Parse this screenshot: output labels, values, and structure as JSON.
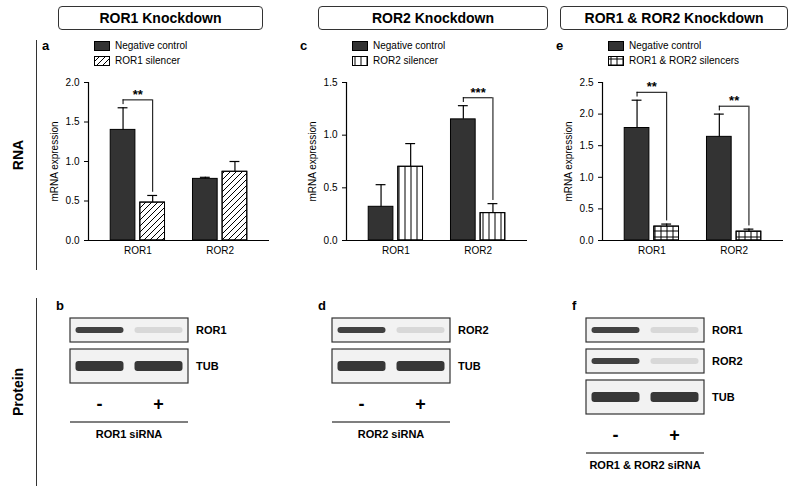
{
  "headers": [
    "ROR1 Knockdown",
    "ROR2 Knockdown",
    "ROR1 & ROR2 Knockdown"
  ],
  "row_labels": [
    "RNA",
    "Protein"
  ],
  "chart_data": [
    {
      "type": "bar",
      "panel": "a",
      "categories": [
        "ROR1",
        "ROR2"
      ],
      "series": [
        {
          "name": "Negative control",
          "color": "#333333",
          "values": [
            1.4,
            0.78
          ],
          "errors": [
            0.28,
            0.02
          ]
        },
        {
          "name": "ROR1 silencer",
          "color": "#ffffff",
          "values": [
            0.48,
            0.87
          ],
          "errors": [
            0.09,
            0.13
          ]
        }
      ],
      "y_label": "mRNA expression",
      "ylim": [
        0,
        2
      ],
      "yticks": [
        {
          "value": 0,
          "label": "0.0"
        },
        {
          "value": 0.5,
          "label": "0.5"
        },
        {
          "value": 1,
          "label": "1.0"
        },
        {
          "value": 1.5,
          "label": "1.5"
        },
        {
          "value": 2,
          "label": "2.0"
        }
      ],
      "legend": "top-left",
      "annotations": [
        {
          "category": "ROR1",
          "text": "**"
        }
      ]
    },
    {
      "type": "bar",
      "panel": "c",
      "categories": [
        "ROR1",
        "ROR2"
      ],
      "series": [
        {
          "name": "Negative control",
          "color": "#333333",
          "values": [
            0.32,
            1.15
          ],
          "errors": [
            0.21,
            0.13
          ]
        },
        {
          "name": "ROR2 silencer",
          "color": "#ffffff",
          "values": [
            0.7,
            0.26
          ],
          "errors": [
            0.22,
            0.09
          ]
        }
      ],
      "y_label": "mRNA expression",
      "ylim": [
        0,
        1.5
      ],
      "yticks": [
        {
          "value": 0,
          "label": "0.0"
        },
        {
          "value": 0.5,
          "label": "0.5"
        },
        {
          "value": 1,
          "label": "1.0"
        },
        {
          "value": 1.5,
          "label": "1.5"
        }
      ],
      "legend": "top-left",
      "annotations": [
        {
          "category": "ROR2",
          "text": "***"
        }
      ]
    },
    {
      "type": "bar",
      "panel": "e",
      "categories": [
        "ROR1",
        "ROR2"
      ],
      "series": [
        {
          "name": "Negative control",
          "color": "#333333",
          "values": [
            1.78,
            1.64
          ],
          "errors": [
            0.44,
            0.36
          ]
        },
        {
          "name": "ROR1 & ROR2 silencers",
          "color": "#ffffff",
          "values": [
            0.22,
            0.14
          ],
          "errors": [
            0.04,
            0.04
          ]
        }
      ],
      "y_label": "mRNA expression",
      "ylim": [
        0,
        2.5
      ],
      "yticks": [
        {
          "value": 0,
          "label": "0.0"
        },
        {
          "value": 0.5,
          "label": "0.5"
        },
        {
          "value": 1,
          "label": "1.0"
        },
        {
          "value": 1.5,
          "label": "1.5"
        },
        {
          "value": 2,
          "label": "2.0"
        },
        {
          "value": 2.5,
          "label": "2.5"
        }
      ],
      "legend": "top-left",
      "annotations": [
        {
          "category": "ROR1",
          "text": "**"
        },
        {
          "category": "ROR2",
          "text": "**"
        }
      ]
    }
  ],
  "blots": [
    {
      "panel": "b",
      "bands": [
        "ROR1",
        "TUB"
      ],
      "lanes": [
        "-",
        "+"
      ],
      "treatment": "ROR1 siRNA"
    },
    {
      "panel": "d",
      "bands": [
        "ROR2",
        "TUB"
      ],
      "lanes": [
        "-",
        "+"
      ],
      "treatment": "ROR2 siRNA"
    },
    {
      "panel": "f",
      "bands": [
        "ROR1",
        "ROR2",
        "TUB"
      ],
      "lanes": [
        "-",
        "+"
      ],
      "treatment": "ROR1 & ROR2 siRNA"
    }
  ]
}
